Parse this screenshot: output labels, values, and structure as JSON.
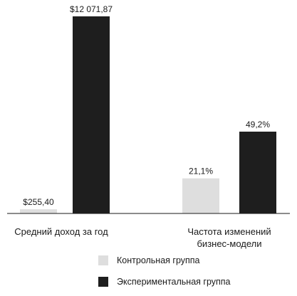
{
  "chart_data": {
    "type": "bar",
    "title": "",
    "xlabel": "",
    "ylabel": "",
    "categories": [
      "Средний доход за год",
      "Частота изменений бизнес-модели"
    ],
    "category_lines": [
      [
        "Средний доход за год"
      ],
      [
        "Частота изменений",
        "бизнес-модели"
      ]
    ],
    "scale": "independent per category",
    "series": [
      {
        "name": "Контрольная группа",
        "color": "#dedede",
        "values": [
          255.4,
          21.1
        ],
        "value_labels": [
          "$255,40",
          "21,1%"
        ]
      },
      {
        "name": "Экспериментальная группа",
        "color": "#1e1e1e",
        "values": [
          12071.87,
          49.2
        ],
        "value_labels": [
          "$12 071,87",
          "49,2%"
        ]
      }
    ],
    "legend_position": "bottom",
    "grid": false
  }
}
